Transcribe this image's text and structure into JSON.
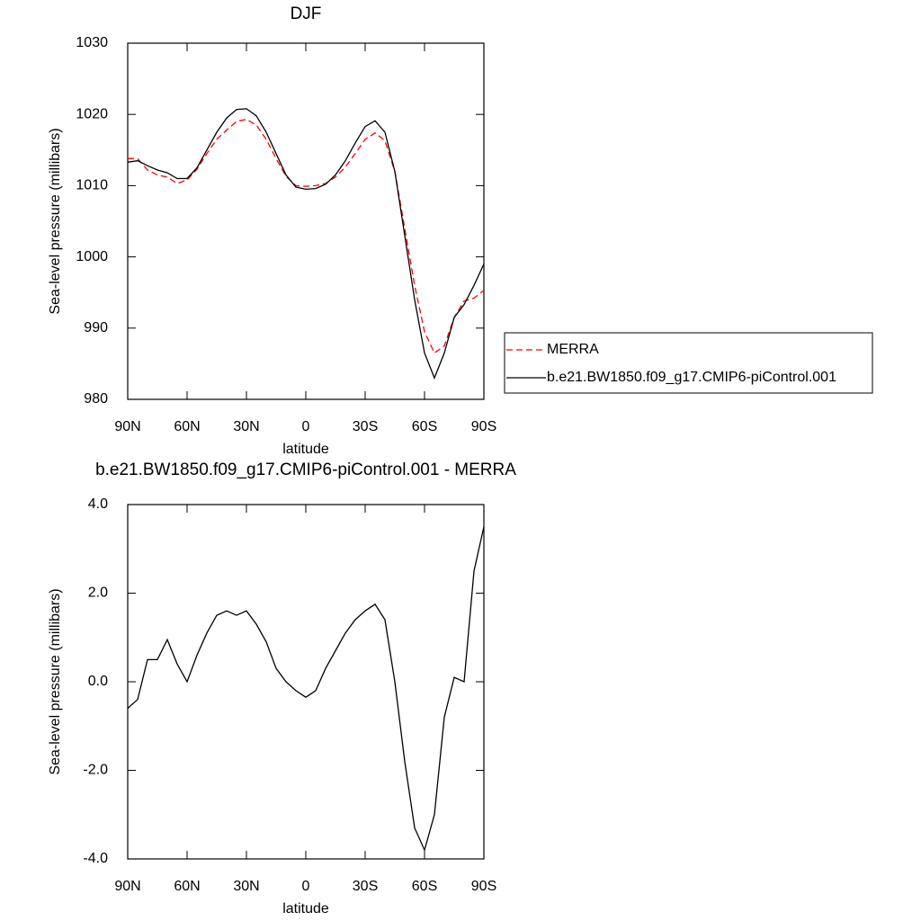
{
  "chart_data": [
    {
      "type": "line",
      "title": "DJF",
      "xlabel": "latitude",
      "ylabel": "Sea-level pressure (millibars)",
      "x": [
        90,
        85,
        80,
        75,
        70,
        65,
        60,
        55,
        50,
        45,
        40,
        35,
        30,
        25,
        20,
        15,
        10,
        5,
        0,
        -5,
        -10,
        -15,
        -20,
        -25,
        -30,
        -35,
        -40,
        -45,
        -50,
        -55,
        -60,
        -65,
        -70,
        -75,
        -80,
        -85,
        -90
      ],
      "series": [
        {
          "name": "MERRA",
          "color": "#ff0000",
          "linestyle": "dashed",
          "values": [
            1013.8,
            1013.8,
            1012.2,
            1011.5,
            1011.2,
            1010.3,
            1010.8,
            1012.3,
            1014.5,
            1016.5,
            1017.8,
            1019.0,
            1019.3,
            1018.5,
            1016.5,
            1013.8,
            1011.3,
            1010.0,
            1009.9,
            1010.0,
            1010.3,
            1011.2,
            1012.6,
            1014.5,
            1016.5,
            1017.4,
            1016.3,
            1012.0,
            1004.0,
            996.0,
            989.5,
            986.5,
            987.5,
            991.5,
            993.8,
            994.2,
            995.3
          ]
        },
        {
          "name": "b.e21.BW1850.f09_g17.CMIP6-piControl.001",
          "color": "#000000",
          "linestyle": "solid",
          "values": [
            1013.3,
            1013.5,
            1012.8,
            1012.2,
            1011.8,
            1011.0,
            1011.0,
            1012.5,
            1015.0,
            1017.5,
            1019.5,
            1020.7,
            1020.8,
            1019.8,
            1017.5,
            1014.5,
            1011.5,
            1009.8,
            1009.5,
            1009.6,
            1010.2,
            1011.5,
            1013.5,
            1016.0,
            1018.3,
            1019.1,
            1017.5,
            1012.0,
            1003.0,
            994.0,
            986.5,
            983.0,
            986.5,
            991.5,
            993.3,
            996.0,
            999.0
          ]
        }
      ],
      "xlim": [
        90,
        -90
      ],
      "xticks": [
        {
          "value": 90,
          "label": "90N"
        },
        {
          "value": 60,
          "label": "60N"
        },
        {
          "value": 30,
          "label": "30N"
        },
        0,
        {
          "value": -30,
          "label": "30S"
        },
        {
          "value": -60,
          "label": "60S"
        },
        {
          "value": -90,
          "label": "90S"
        }
      ],
      "ylim": [
        980,
        1030
      ],
      "yticks": [
        980,
        990,
        1000,
        1010,
        1020,
        1030
      ],
      "legend": "right"
    },
    {
      "type": "line",
      "title": "b.e21.BW1850.f09_g17.CMIP6-piControl.001 - MERRA",
      "xlabel": "latitude",
      "ylabel": "Sea-level pressure (millibars)",
      "x": [
        90,
        85,
        80,
        75,
        70,
        65,
        60,
        55,
        50,
        45,
        40,
        35,
        30,
        25,
        20,
        15,
        10,
        5,
        0,
        -5,
        -10,
        -15,
        -20,
        -25,
        -30,
        -35,
        -40,
        -45,
        -50,
        -55,
        -60,
        -65,
        -70,
        -75,
        -80,
        -85,
        -90
      ],
      "series": [
        {
          "color": "#000000",
          "linestyle": "solid",
          "values": [
            -0.6,
            -0.4,
            0.5,
            0.5,
            0.95,
            0.4,
            0.0,
            0.6,
            1.1,
            1.5,
            1.6,
            1.5,
            1.6,
            1.3,
            0.9,
            0.3,
            0.0,
            -0.2,
            -0.35,
            -0.2,
            0.3,
            0.7,
            1.1,
            1.4,
            1.6,
            1.75,
            1.4,
            0.0,
            -1.8,
            -3.3,
            -3.8,
            -3.0,
            -0.8,
            0.1,
            0.0,
            2.5,
            3.5
          ]
        }
      ],
      "xlim": [
        90,
        -90
      ],
      "xticks": [
        {
          "value": 90,
          "label": "90N"
        },
        {
          "value": 60,
          "label": "60N"
        },
        {
          "value": 30,
          "label": "30N"
        },
        0,
        {
          "value": -30,
          "label": "30S"
        },
        {
          "value": -60,
          "label": "60S"
        },
        {
          "value": -90,
          "label": "90S"
        }
      ],
      "ylim": [
        -4,
        4
      ],
      "yticks": [
        {
          "value": -4,
          "label": "-4.0"
        },
        {
          "value": -2,
          "label": "-2.0"
        },
        {
          "value": 0,
          "label": "0.0"
        },
        {
          "value": 2,
          "label": "2.0"
        },
        {
          "value": 4,
          "label": "4.0"
        }
      ]
    }
  ]
}
